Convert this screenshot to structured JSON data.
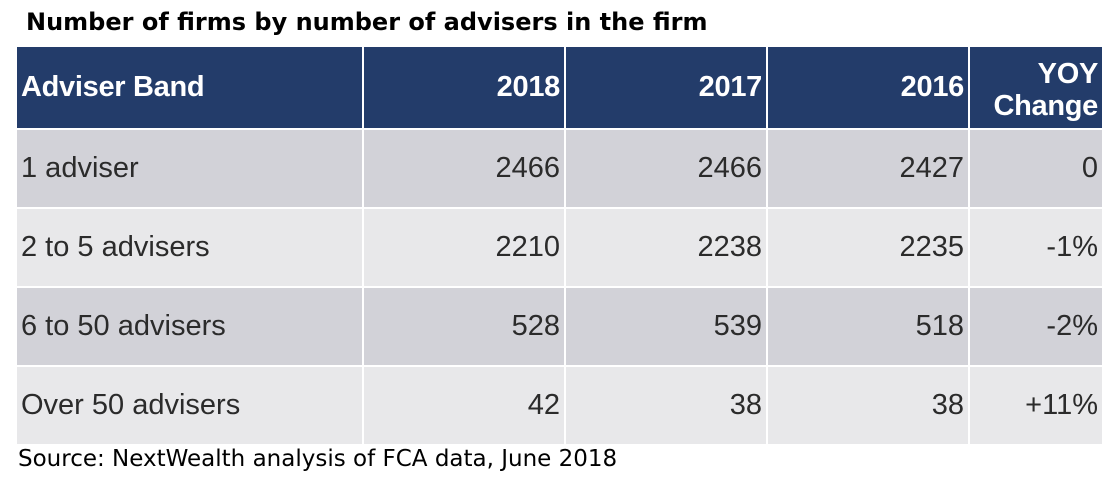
{
  "title": "Number of firms by number of advisers in the firm",
  "table": {
    "headers": {
      "band": "Adviser Band",
      "y2018": "2018",
      "y2017": "2017",
      "y2016": "2016",
      "yoy_line1": "YOY",
      "yoy_line2": "Change"
    },
    "rows": [
      {
        "band": "1 adviser",
        "y2018": "2466",
        "y2017": "2466",
        "y2016": "2427",
        "yoy": "0"
      },
      {
        "band": "2 to 5 advisers",
        "y2018": "2210",
        "y2017": "2238",
        "y2016": "2235",
        "yoy": "-1%"
      },
      {
        "band": "6 to 50 advisers",
        "y2018": "528",
        "y2017": "539",
        "y2016": "518",
        "yoy": "-2%"
      },
      {
        "band": "Over 50 advisers",
        "y2018": "42",
        "y2017": "38",
        "y2016": "38",
        "yoy": "+11%"
      }
    ]
  },
  "source": "Source: NextWealth analysis of FCA data, June 2018",
  "colors": {
    "header_background": "#233c6a",
    "header_text": "#ffffff",
    "row_shade_dark": "#d2d2d8",
    "row_shade_light": "#e8e8ea",
    "body_text": "#2b2b2b"
  }
}
